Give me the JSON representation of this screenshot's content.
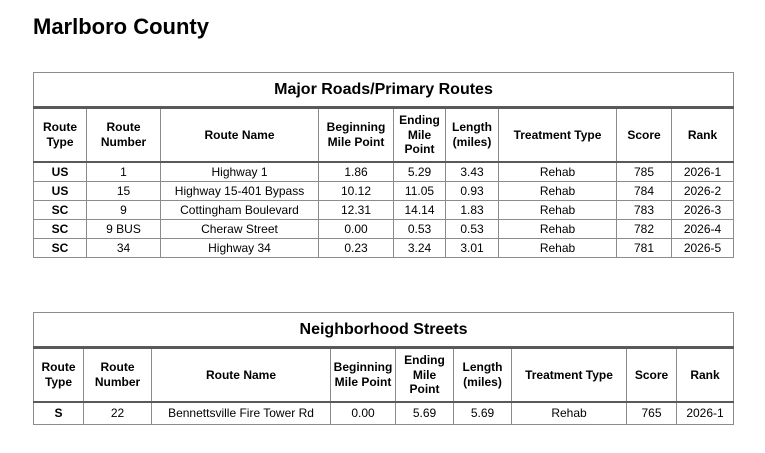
{
  "page": {
    "title": "Marlboro County"
  },
  "colors": {
    "background": "#ffffff",
    "text": "#000000",
    "grid_line": "#8c8c8c",
    "heavy_rule": "#595959"
  },
  "tables": [
    {
      "title": "Major Roads/Primary Routes",
      "columns": [
        "Route Type",
        "Route Number",
        "Route Name",
        "Beginning Mile Point",
        "Ending Mile Point",
        "Length (miles)",
        "Treatment Type",
        "Score",
        "Rank"
      ],
      "rows": [
        [
          "US",
          "1",
          "Highway 1",
          "1.86",
          "5.29",
          "3.43",
          "Rehab",
          "785",
          "2026-1"
        ],
        [
          "US",
          "15",
          "Highway 15-401 Bypass",
          "10.12",
          "11.05",
          "0.93",
          "Rehab",
          "784",
          "2026-2"
        ],
        [
          "SC",
          "9",
          "Cottingham Boulevard",
          "12.31",
          "14.14",
          "1.83",
          "Rehab",
          "783",
          "2026-3"
        ],
        [
          "SC",
          "9 BUS",
          "Cheraw Street",
          "0.00",
          "0.53",
          "0.53",
          "Rehab",
          "782",
          "2026-4"
        ],
        [
          "SC",
          "34",
          "Highway 34",
          "0.23",
          "3.24",
          "3.01",
          "Rehab",
          "781",
          "2026-5"
        ]
      ]
    },
    {
      "title": "Neighborhood Streets",
      "columns": [
        "Route Type",
        "Route Number",
        "Route Name",
        "Beginning Mile Point",
        "Ending Mile Point",
        "Length (miles)",
        "Treatment Type",
        "Score",
        "Rank"
      ],
      "rows": [
        [
          "S",
          "22",
          "Bennettsville Fire Tower Rd",
          "0.00",
          "5.69",
          "5.69",
          "Rehab",
          "765",
          "2026-1"
        ]
      ]
    }
  ]
}
